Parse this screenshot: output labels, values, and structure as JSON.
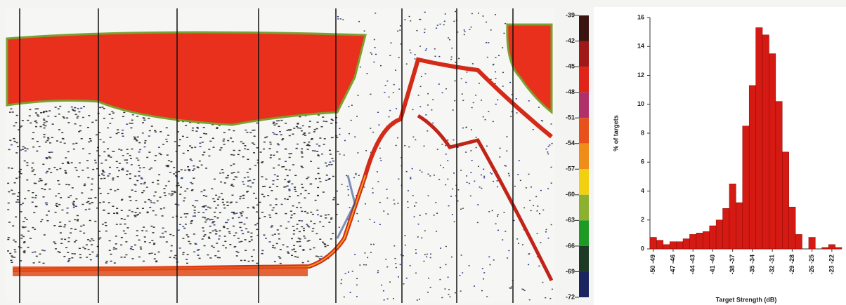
{
  "chart_data": {
    "type": "histogram",
    "x_label": "Target Strength (dB)",
    "y_label": "% of targets",
    "bins": [
      -50,
      -49,
      -48,
      -47,
      -46,
      -45,
      -44,
      -43,
      -42,
      -41,
      -40,
      -39,
      -38,
      -37,
      -36,
      -35,
      -34,
      -33,
      -32,
      -31,
      -30,
      -29,
      -28,
      -27,
      -26,
      -25,
      -24,
      -23,
      -22,
      -21
    ],
    "values": [
      0.8,
      0.6,
      0.3,
      0.5,
      0.5,
      0.7,
      1.0,
      1.1,
      1.2,
      1.6,
      2.0,
      2.8,
      4.5,
      3.2,
      8.5,
      11.3,
      15.3,
      14.8,
      13.5,
      10.2,
      6.7,
      2.9,
      1.0,
      0,
      0.8,
      0,
      0.1,
      0.3,
      0.1
    ],
    "color": "#d41a12",
    "xlim": [
      -50,
      -21
    ],
    "xticks": [
      {
        "value": -49.5,
        "label": "-50 -49"
      },
      {
        "value": -46.5,
        "label": "-47 -46"
      },
      {
        "value": -43.5,
        "label": "-44 -43"
      },
      {
        "value": -40.5,
        "label": "-41 -40"
      },
      {
        "value": -37.5,
        "label": "-38 -37"
      },
      {
        "value": -34.5,
        "label": "-35 -34"
      },
      {
        "value": -31.5,
        "label": "-32 -31"
      },
      {
        "value": -28.5,
        "label": "-29 -28"
      },
      {
        "value": -25.5,
        "label": "-26 -25"
      },
      {
        "value": -22.5,
        "label": "-23 -22"
      }
    ],
    "ylim": [
      0,
      16
    ],
    "yticks": [
      0,
      2,
      4,
      6,
      8,
      10,
      12,
      14,
      16
    ]
  },
  "colorbar": {
    "ticks": [
      -39,
      -42,
      -45,
      -48,
      -51,
      -54,
      -57,
      -60,
      -63,
      -66,
      -69,
      -72
    ],
    "colors": [
      "#3a1510",
      "#a01818",
      "#e02418",
      "#b0306a",
      "#e8501c",
      "#f08c18",
      "#f0d010",
      "#8cb030",
      "#1e9a24",
      "#1c3a24",
      "#1c2460"
    ]
  }
}
